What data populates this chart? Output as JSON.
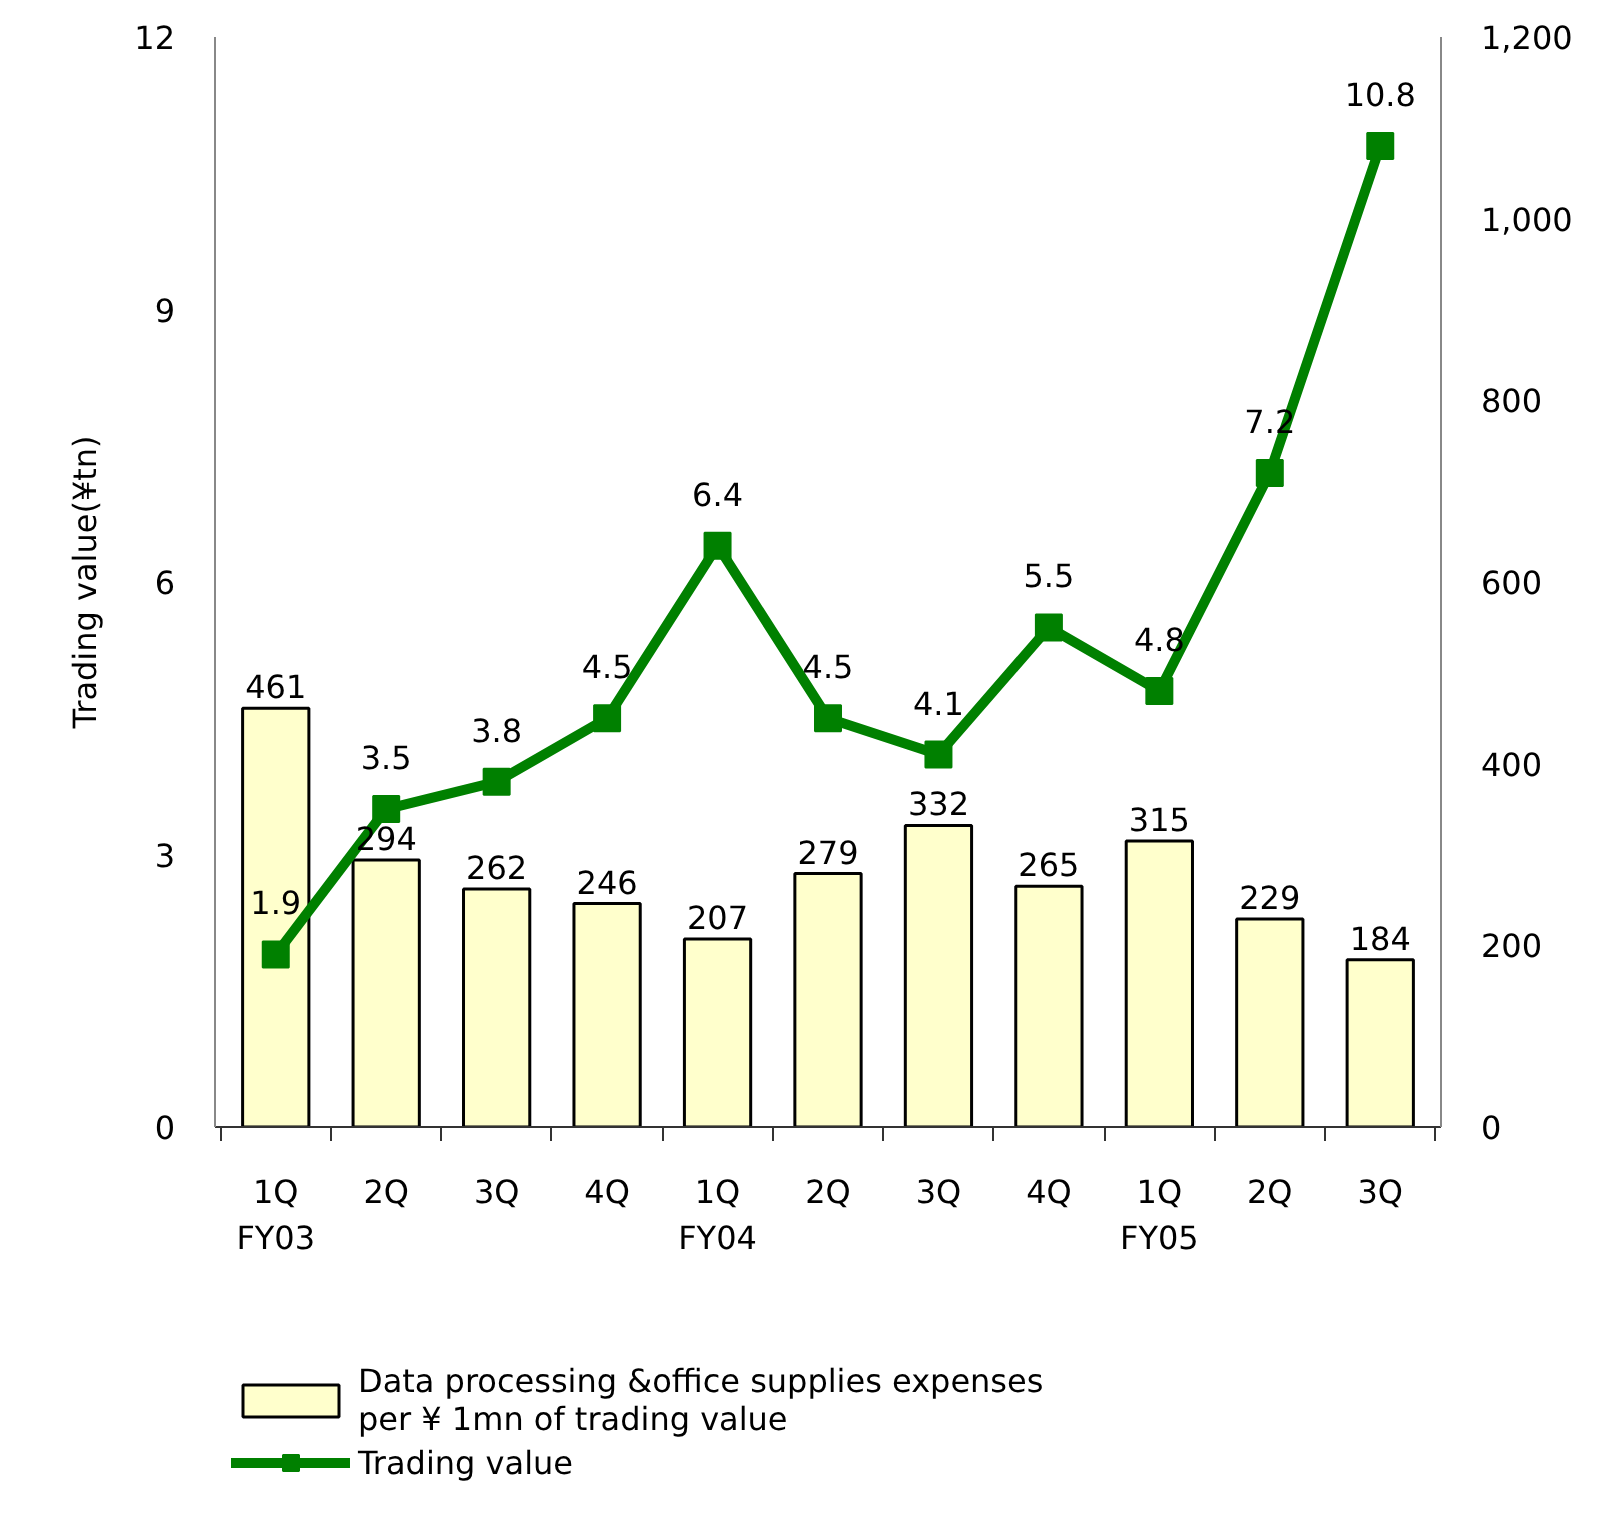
{
  "chart_data": {
    "type": "bar",
    "ylabel": "Trading value(¥tn)",
    "categories": [
      "1Q\nFY03",
      "2Q",
      "3Q",
      "4Q",
      "1Q\nFY04",
      "2Q",
      "3Q",
      "4Q",
      "1Q\nFY05",
      "2Q",
      "3Q"
    ],
    "series": [
      {
        "name": "Data processing &office supplies expenses\nper ¥ 1mn of trading value",
        "axis": "y2",
        "color": "#ffffcc",
        "values": [
          461,
          294,
          262,
          246,
          207,
          279,
          332,
          265,
          315,
          229,
          184
        ]
      },
      {
        "name": "Trading value",
        "type": "line",
        "color": "#008000",
        "marker": "square",
        "values": [
          1.9,
          3.5,
          3.8,
          4.5,
          6.4,
          4.5,
          4.1,
          5.5,
          4.8,
          7.2,
          10.8
        ]
      }
    ],
    "ylim": [
      0,
      12
    ],
    "yticks": [
      0,
      3,
      6,
      9,
      12
    ],
    "y2lim": [
      0,
      1200
    ],
    "y2ticks": [
      0,
      200,
      400,
      600,
      800,
      {
        "value": 1000,
        "label": "1,000"
      },
      {
        "value": 1200,
        "label": "1,200"
      }
    ],
    "data_labels": true,
    "grid": false,
    "legend": "bottom"
  }
}
